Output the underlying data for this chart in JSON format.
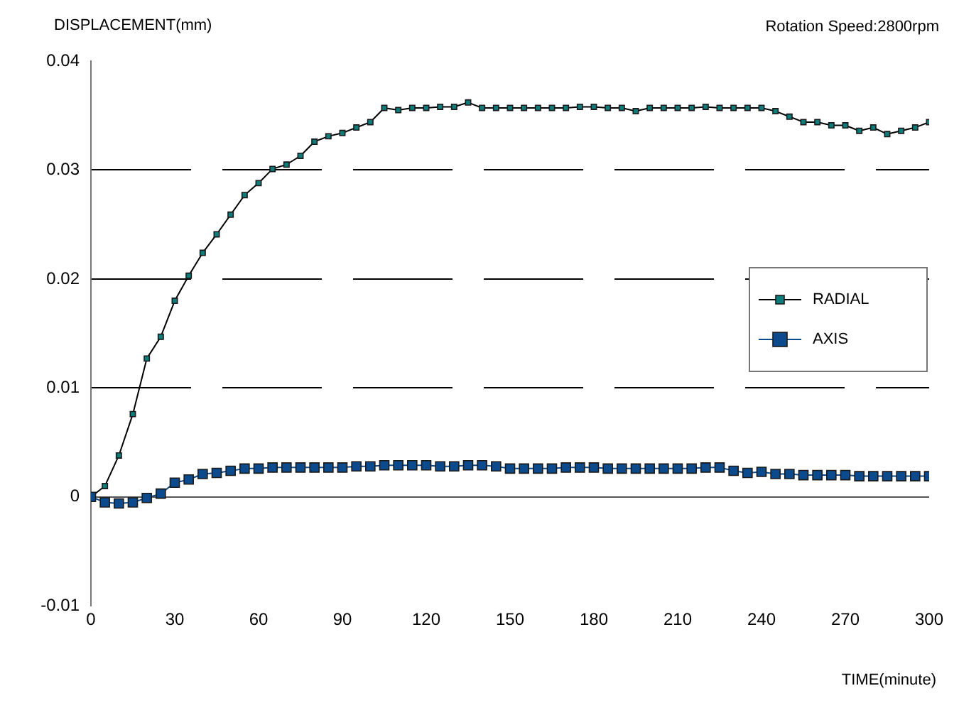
{
  "chart_data": {
    "type": "line",
    "ylabel": "DISPLACEMENT(mm)",
    "xlabel": "TIME(minute)",
    "annotations": [
      "Rotation Speed:2800rpm"
    ],
    "x": [
      0,
      5,
      10,
      15,
      20,
      25,
      30,
      35,
      40,
      45,
      50,
      55,
      60,
      65,
      70,
      75,
      80,
      85,
      90,
      95,
      100,
      105,
      110,
      115,
      120,
      125,
      130,
      135,
      140,
      145,
      150,
      155,
      160,
      165,
      170,
      175,
      180,
      185,
      190,
      195,
      200,
      205,
      210,
      215,
      220,
      225,
      230,
      235,
      240,
      245,
      250,
      255,
      260,
      265,
      270,
      275,
      280,
      285,
      290,
      295,
      300
    ],
    "series": [
      {
        "name": "RADIAL",
        "color": "#0e7c7b",
        "marker": "square",
        "values": [
          0,
          0.001,
          0.0038,
          0.0076,
          0.0127,
          0.0147,
          0.018,
          0.0203,
          0.0224,
          0.0241,
          0.0259,
          0.0277,
          0.0288,
          0.0301,
          0.0305,
          0.0313,
          0.0326,
          0.0331,
          0.0334,
          0.0339,
          0.0344,
          0.0357,
          0.0355,
          0.0357,
          0.0357,
          0.0358,
          0.0358,
          0.0362,
          0.0357,
          0.0357,
          0.0357,
          0.0357,
          0.0357,
          0.0357,
          0.0357,
          0.0358,
          0.0358,
          0.0357,
          0.0357,
          0.0354,
          0.0357,
          0.0357,
          0.0357,
          0.0357,
          0.0358,
          0.0357,
          0.0357,
          0.0357,
          0.0357,
          0.0354,
          0.0349,
          0.0344,
          0.0344,
          0.0341,
          0.0341,
          0.0336,
          0.0339,
          0.0333,
          0.0336,
          0.0339,
          0.0344
        ]
      },
      {
        "name": "AXIS",
        "color": "#0b4a8c",
        "marker": "square",
        "values": [
          0,
          -0.0005,
          -0.0006,
          -0.0005,
          -0.0001,
          0.0003,
          0.0013,
          0.0016,
          0.0021,
          0.0022,
          0.0024,
          0.0026,
          0.0026,
          0.0027,
          0.0027,
          0.0027,
          0.0027,
          0.0027,
          0.0027,
          0.0028,
          0.0028,
          0.0029,
          0.0029,
          0.0029,
          0.0029,
          0.0028,
          0.0028,
          0.0029,
          0.0029,
          0.0028,
          0.0026,
          0.0026,
          0.0026,
          0.0026,
          0.0027,
          0.0027,
          0.0027,
          0.0026,
          0.0026,
          0.0026,
          0.0026,
          0.0026,
          0.0026,
          0.0026,
          0.0027,
          0.0027,
          0.0024,
          0.0022,
          0.0023,
          0.0021,
          0.0021,
          0.002,
          0.002,
          0.002,
          0.002,
          0.0019,
          0.0019,
          0.0019,
          0.0019,
          0.0019,
          0.0019
        ]
      }
    ],
    "xlim": [
      0,
      300
    ],
    "xticks": [
      0,
      30,
      60,
      90,
      120,
      150,
      180,
      210,
      240,
      270,
      300
    ],
    "ylim": [
      -0.01,
      0.04
    ],
    "yticks": [
      -0.01,
      0,
      0.01,
      0.02,
      0.03,
      0.04
    ],
    "grid": "y",
    "legend": "right",
    "line_style": "solid"
  }
}
